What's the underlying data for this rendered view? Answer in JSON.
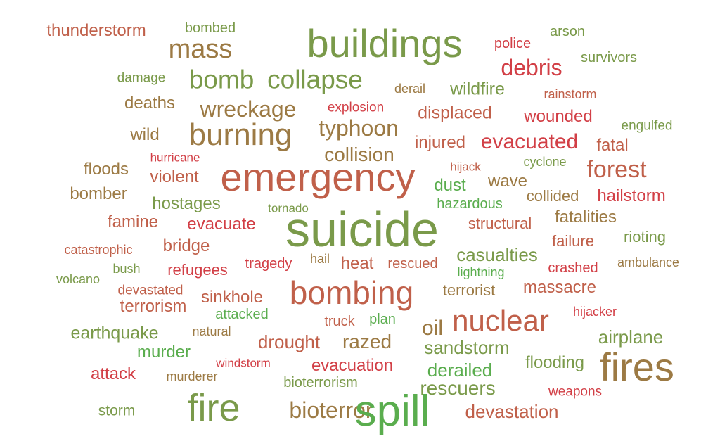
{
  "palette": {
    "green": "#7a9a4a",
    "olive": "#9c7a44",
    "rust": "#c0604a",
    "red": "#d23f46",
    "lime": "#5aad4e"
  },
  "words": [
    {
      "text": "thunderstorm",
      "color": "rust"
    },
    {
      "text": "bombed",
      "color": "green"
    },
    {
      "text": "buildings",
      "color": "green"
    },
    {
      "text": "police",
      "color": "red"
    },
    {
      "text": "arson",
      "color": "green"
    },
    {
      "text": "mass",
      "color": "olive"
    },
    {
      "text": "survivors",
      "color": "green"
    },
    {
      "text": "debris",
      "color": "red"
    },
    {
      "text": "damage",
      "color": "green"
    },
    {
      "text": "bomb",
      "color": "green"
    },
    {
      "text": "collapse",
      "color": "green"
    },
    {
      "text": "derail",
      "color": "olive"
    },
    {
      "text": "wildfire",
      "color": "green"
    },
    {
      "text": "rainstorm",
      "color": "rust"
    },
    {
      "text": "deaths",
      "color": "olive"
    },
    {
      "text": "wreckage",
      "color": "olive"
    },
    {
      "text": "explosion",
      "color": "red"
    },
    {
      "text": "displaced",
      "color": "rust"
    },
    {
      "text": "wounded",
      "color": "red"
    },
    {
      "text": "burning",
      "color": "olive"
    },
    {
      "text": "typhoon",
      "color": "olive"
    },
    {
      "text": "engulfed",
      "color": "green"
    },
    {
      "text": "wild",
      "color": "olive"
    },
    {
      "text": "injured",
      "color": "rust"
    },
    {
      "text": "evacuated",
      "color": "red"
    },
    {
      "text": "fatal",
      "color": "rust"
    },
    {
      "text": "hurricane",
      "color": "red"
    },
    {
      "text": "collision",
      "color": "olive"
    },
    {
      "text": "hijack",
      "color": "rust"
    },
    {
      "text": "cyclone",
      "color": "green"
    },
    {
      "text": "floods",
      "color": "olive"
    },
    {
      "text": "emergency",
      "color": "rust"
    },
    {
      "text": "forest",
      "color": "rust"
    },
    {
      "text": "violent",
      "color": "rust"
    },
    {
      "text": "dust",
      "color": "lime"
    },
    {
      "text": "wave",
      "color": "olive"
    },
    {
      "text": "bomber",
      "color": "olive"
    },
    {
      "text": "collided",
      "color": "olive"
    },
    {
      "text": "hailstorm",
      "color": "red"
    },
    {
      "text": "hostages",
      "color": "green"
    },
    {
      "text": "tornado",
      "color": "green"
    },
    {
      "text": "hazardous",
      "color": "lime"
    },
    {
      "text": "famine",
      "color": "rust"
    },
    {
      "text": "evacuate",
      "color": "red"
    },
    {
      "text": "suicide",
      "color": "green"
    },
    {
      "text": "structural",
      "color": "rust"
    },
    {
      "text": "fatalities",
      "color": "olive"
    },
    {
      "text": "rioting",
      "color": "green"
    },
    {
      "text": "bridge",
      "color": "rust"
    },
    {
      "text": "failure",
      "color": "rust"
    },
    {
      "text": "catastrophic",
      "color": "rust"
    },
    {
      "text": "casualties",
      "color": "green"
    },
    {
      "text": "bush",
      "color": "green"
    },
    {
      "text": "ambulance",
      "color": "olive"
    },
    {
      "text": "hail",
      "color": "olive"
    },
    {
      "text": "heat",
      "color": "rust"
    },
    {
      "text": "rescued",
      "color": "rust"
    },
    {
      "text": "refugees",
      "color": "red"
    },
    {
      "text": "tragedy",
      "color": "red"
    },
    {
      "text": "lightning",
      "color": "lime"
    },
    {
      "text": "crashed",
      "color": "red"
    },
    {
      "text": "volcano",
      "color": "green"
    },
    {
      "text": "devastated",
      "color": "rust"
    },
    {
      "text": "bombing",
      "color": "rust"
    },
    {
      "text": "terrorist",
      "color": "olive"
    },
    {
      "text": "massacre",
      "color": "rust"
    },
    {
      "text": "terrorism",
      "color": "rust"
    },
    {
      "text": "sinkhole",
      "color": "rust"
    },
    {
      "text": "hijacker",
      "color": "red"
    },
    {
      "text": "attacked",
      "color": "lime"
    },
    {
      "text": "nuclear",
      "color": "rust"
    },
    {
      "text": "truck",
      "color": "rust"
    },
    {
      "text": "plan",
      "color": "lime"
    },
    {
      "text": "earthquake",
      "color": "green"
    },
    {
      "text": "natural",
      "color": "olive"
    },
    {
      "text": "oil",
      "color": "olive"
    },
    {
      "text": "airplane",
      "color": "green"
    },
    {
      "text": "drought",
      "color": "rust"
    },
    {
      "text": "razed",
      "color": "olive"
    },
    {
      "text": "murder",
      "color": "lime"
    },
    {
      "text": "sandstorm",
      "color": "green"
    },
    {
      "text": "windstorm",
      "color": "red"
    },
    {
      "text": "evacuation",
      "color": "red"
    },
    {
      "text": "flooding",
      "color": "green"
    },
    {
      "text": "fires",
      "color": "olive"
    },
    {
      "text": "attack",
      "color": "red"
    },
    {
      "text": "murderer",
      "color": "olive"
    },
    {
      "text": "derailed",
      "color": "lime"
    },
    {
      "text": "bioterrorism",
      "color": "green"
    },
    {
      "text": "rescuers",
      "color": "green"
    },
    {
      "text": "weapons",
      "color": "red"
    },
    {
      "text": "storm",
      "color": "green"
    },
    {
      "text": "fire",
      "color": "green"
    },
    {
      "text": "bioterror",
      "color": "olive"
    },
    {
      "text": "spill",
      "color": "lime"
    },
    {
      "text": "devastation",
      "color": "rust"
    }
  ]
}
